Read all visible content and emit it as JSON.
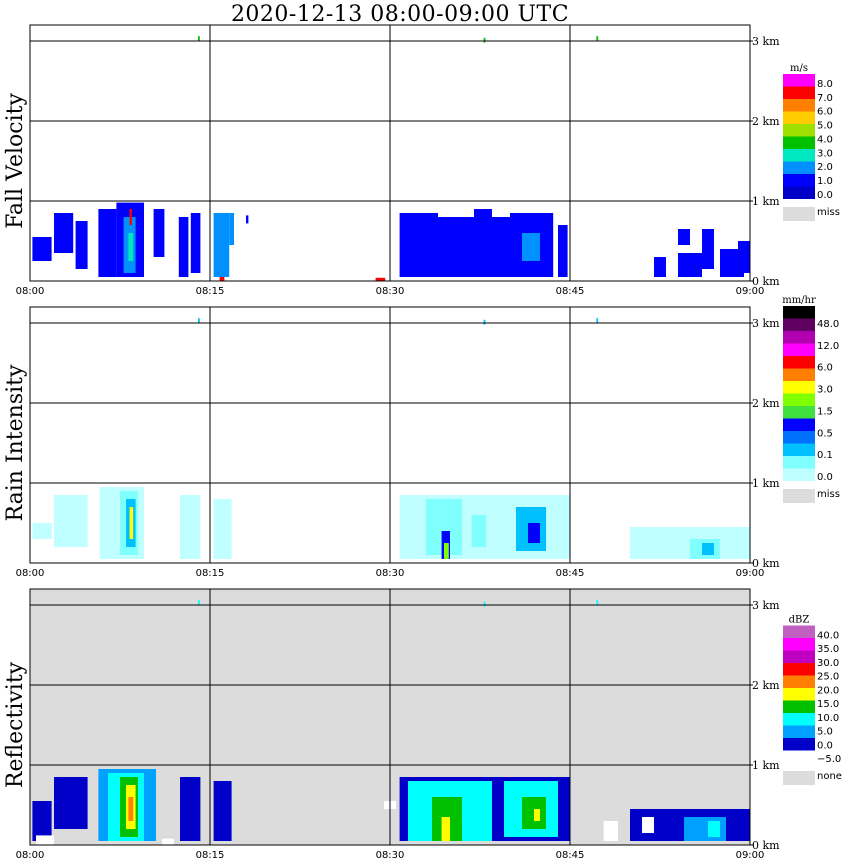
{
  "title": "2020-12-13   08:00-09:00 UTC",
  "chart_data": [
    {
      "type": "heatmap",
      "ylabel": "Fall Velocity",
      "units": "m/s",
      "background": "#ffffff",
      "x_ticks": [
        "08:00",
        "08:15",
        "08:30",
        "08:45",
        "09:00"
      ],
      "y_ticks": [
        "0 km",
        "1 km",
        "2 km",
        "3 km"
      ],
      "ylim_km": [
        0,
        3.2
      ],
      "legend": {
        "labels": [
          "8.0",
          "7.0",
          "6.0",
          "5.0",
          "4.0",
          "3.0",
          "2.0",
          "1.0",
          "0.0"
        ],
        "colors": [
          "#ff00ff",
          "#ff0000",
          "#ff8000",
          "#ffcc00",
          "#a0e000",
          "#00c000",
          "#00e8c0",
          "#0090ff",
          "#0000ff",
          "#0000c8"
        ],
        "missing_label": "miss",
        "missing_color": "#dcdcdc"
      },
      "echoes": [
        {
          "t0": 0.2,
          "t1": 1.8,
          "h0": 0.25,
          "h1": 0.55,
          "c": 8
        },
        {
          "t0": 2.0,
          "t1": 3.6,
          "h0": 0.35,
          "h1": 0.85,
          "c": 8
        },
        {
          "t0": 3.8,
          "t1": 4.8,
          "h0": 0.15,
          "h1": 0.75,
          "c": 8
        },
        {
          "t0": 5.7,
          "t1": 7.2,
          "h0": 0.05,
          "h1": 0.9,
          "c": 8
        },
        {
          "t0": 7.2,
          "t1": 9.5,
          "h0": 0.05,
          "h1": 0.98,
          "c": 8
        },
        {
          "t0": 7.8,
          "t1": 8.8,
          "h0": 0.1,
          "h1": 0.8,
          "c": 7
        },
        {
          "t0": 8.2,
          "t1": 8.6,
          "h0": 0.25,
          "h1": 0.6,
          "c": 6
        },
        {
          "t0": 8.3,
          "t1": 8.5,
          "h0": 0.7,
          "h1": 0.9,
          "c": 1
        },
        {
          "t0": 10.3,
          "t1": 11.2,
          "h0": 0.3,
          "h1": 0.9,
          "c": 8
        },
        {
          "t0": 12.4,
          "t1": 13.2,
          "h0": 0.05,
          "h1": 0.8,
          "c": 8
        },
        {
          "t0": 13.4,
          "t1": 14.2,
          "h0": 0.1,
          "h1": 0.85,
          "c": 8
        },
        {
          "t0": 15.3,
          "t1": 16.6,
          "h0": 0.05,
          "h1": 0.85,
          "c": 7
        },
        {
          "t0": 16.6,
          "t1": 17.0,
          "h0": 0.45,
          "h1": 0.85,
          "c": 7
        },
        {
          "t0": 18.0,
          "t1": 18.2,
          "h0": 0.72,
          "h1": 0.82,
          "c": 8
        },
        {
          "t0": 30.8,
          "t1": 34.0,
          "h0": 0.05,
          "h1": 0.85,
          "c": 8
        },
        {
          "t0": 34.0,
          "t1": 37.0,
          "h0": 0.05,
          "h1": 0.8,
          "c": 8
        },
        {
          "t0": 37.0,
          "t1": 38.5,
          "h0": 0.05,
          "h1": 0.9,
          "c": 8
        },
        {
          "t0": 38.5,
          "t1": 40.0,
          "h0": 0.05,
          "h1": 0.8,
          "c": 8
        },
        {
          "t0": 40.0,
          "t1": 43.6,
          "h0": 0.05,
          "h1": 0.85,
          "c": 8
        },
        {
          "t0": 41.0,
          "t1": 42.5,
          "h0": 0.25,
          "h1": 0.6,
          "c": 7
        },
        {
          "t0": 44.0,
          "t1": 44.8,
          "h0": 0.05,
          "h1": 0.7,
          "c": 8
        },
        {
          "t0": 52.0,
          "t1": 53.0,
          "h0": 0.05,
          "h1": 0.3,
          "c": 8
        },
        {
          "t0": 54.0,
          "t1": 56.0,
          "h0": 0.05,
          "h1": 0.35,
          "c": 8
        },
        {
          "t0": 54.0,
          "t1": 55.0,
          "h0": 0.45,
          "h1": 0.65,
          "c": 8
        },
        {
          "t0": 56.0,
          "t1": 57.0,
          "h0": 0.15,
          "h1": 0.65,
          "c": 8
        },
        {
          "t0": 57.5,
          "t1": 59.5,
          "h0": 0.05,
          "h1": 0.4,
          "c": 8
        },
        {
          "t0": 59.0,
          "t1": 60.0,
          "h0": 0.1,
          "h1": 0.5,
          "c": 8
        },
        {
          "t0": 15.8,
          "t1": 16.2,
          "h0": 0.0,
          "h1": 0.05,
          "c": 1
        },
        {
          "t0": 28.8,
          "t1": 29.6,
          "h0": 0.0,
          "h1": 0.04,
          "c": 1
        },
        {
          "t0": 14.0,
          "t1": 14.15,
          "h0": 3.0,
          "h1": 3.06,
          "c": 5
        },
        {
          "t0": 37.8,
          "t1": 37.95,
          "h0": 2.98,
          "h1": 3.04,
          "c": 5
        },
        {
          "t0": 47.2,
          "t1": 47.35,
          "h0": 3.0,
          "h1": 3.06,
          "c": 5
        }
      ]
    },
    {
      "type": "heatmap",
      "ylabel": "Rain Intensity",
      "units": "mm/hr",
      "background": "#ffffff",
      "x_ticks": [
        "08:00",
        "08:15",
        "08:30",
        "08:45",
        "09:00"
      ],
      "y_ticks": [
        "0 km",
        "1 km",
        "2 km",
        "3 km"
      ],
      "ylim_km": [
        0,
        3.2
      ],
      "legend": {
        "labels": [
          "48.0",
          "12.0",
          "6.0",
          "3.0",
          "1.5",
          "0.5",
          "0.1",
          "0.0"
        ],
        "colors": [
          "#000000",
          "#600060",
          "#b000b0",
          "#ff00ff",
          "#ff0000",
          "#ff8000",
          "#ffff00",
          "#80ff00",
          "#40e040",
          "#0000ff",
          "#0070ff",
          "#00c0ff",
          "#80ffff",
          "#c0ffff"
        ],
        "missing_label": "miss",
        "missing_color": "#dcdcdc"
      },
      "echoes": [
        {
          "t0": 0.2,
          "t1": 1.8,
          "h0": 0.3,
          "h1": 0.5,
          "c": 13
        },
        {
          "t0": 2.0,
          "t1": 4.8,
          "h0": 0.2,
          "h1": 0.85,
          "c": 13
        },
        {
          "t0": 5.8,
          "t1": 9.5,
          "h0": 0.05,
          "h1": 0.95,
          "c": 13
        },
        {
          "t0": 7.5,
          "t1": 9.0,
          "h0": 0.1,
          "h1": 0.9,
          "c": 12
        },
        {
          "t0": 8.0,
          "t1": 8.8,
          "h0": 0.2,
          "h1": 0.8,
          "c": 11
        },
        {
          "t0": 8.3,
          "t1": 8.6,
          "h0": 0.3,
          "h1": 0.7,
          "c": 6
        },
        {
          "t0": 12.5,
          "t1": 14.2,
          "h0": 0.05,
          "h1": 0.85,
          "c": 13
        },
        {
          "t0": 15.3,
          "t1": 16.8,
          "h0": 0.05,
          "h1": 0.8,
          "c": 13
        },
        {
          "t0": 30.8,
          "t1": 45.0,
          "h0": 0.05,
          "h1": 0.85,
          "c": 13
        },
        {
          "t0": 33.0,
          "t1": 36.0,
          "h0": 0.1,
          "h1": 0.8,
          "c": 12
        },
        {
          "t0": 34.3,
          "t1": 35.0,
          "h0": 0.05,
          "h1": 0.4,
          "c": 9
        },
        {
          "t0": 34.5,
          "t1": 34.9,
          "h0": 0.05,
          "h1": 0.25,
          "c": 7
        },
        {
          "t0": 40.5,
          "t1": 43.0,
          "h0": 0.15,
          "h1": 0.7,
          "c": 11
        },
        {
          "t0": 41.5,
          "t1": 42.5,
          "h0": 0.25,
          "h1": 0.5,
          "c": 9
        },
        {
          "t0": 36.8,
          "t1": 38.0,
          "h0": 0.2,
          "h1": 0.6,
          "c": 12
        },
        {
          "t0": 50.0,
          "t1": 60.0,
          "h0": 0.05,
          "h1": 0.45,
          "c": 13
        },
        {
          "t0": 55.0,
          "t1": 57.5,
          "h0": 0.05,
          "h1": 0.3,
          "c": 12
        },
        {
          "t0": 56.0,
          "t1": 57.0,
          "h0": 0.1,
          "h1": 0.25,
          "c": 11
        },
        {
          "t0": 14.0,
          "t1": 14.15,
          "h0": 3.0,
          "h1": 3.06,
          "c": 11
        },
        {
          "t0": 37.8,
          "t1": 37.95,
          "h0": 2.98,
          "h1": 3.04,
          "c": 11
        },
        {
          "t0": 47.2,
          "t1": 47.35,
          "h0": 3.0,
          "h1": 3.06,
          "c": 11
        }
      ]
    },
    {
      "type": "heatmap",
      "ylabel": "Reflectivity",
      "units": "dBZ",
      "background": "#dcdcdc",
      "x_ticks": [
        "08:00",
        "08:15",
        "08:30",
        "08:45",
        "09:00"
      ],
      "y_ticks": [
        "0 km",
        "1 km",
        "2 km",
        "3 km"
      ],
      "ylim_km": [
        0,
        3.2
      ],
      "legend": {
        "labels": [
          "40.0",
          "35.0",
          "30.0",
          "25.0",
          "20.0",
          "15.0",
          "10.0",
          "5.0",
          "0.0",
          "−5.0"
        ],
        "colors": [
          "#c060c0",
          "#ff00ff",
          "#c000c0",
          "#ff0000",
          "#ff8000",
          "#ffff00",
          "#00c000",
          "#00ffff",
          "#00a0ff",
          "#0000c8",
          "#ffffff"
        ],
        "missing_label": "none",
        "missing_color": "#dcdcdc"
      },
      "echoes": [
        {
          "t0": 0.2,
          "t1": 1.8,
          "h0": 0.05,
          "h1": 0.55,
          "c": 9
        },
        {
          "t0": 2.0,
          "t1": 4.8,
          "h0": 0.2,
          "h1": 0.85,
          "c": 9
        },
        {
          "t0": 5.7,
          "t1": 10.5,
          "h0": 0.05,
          "h1": 0.95,
          "c": 8
        },
        {
          "t0": 6.5,
          "t1": 9.5,
          "h0": 0.05,
          "h1": 0.9,
          "c": 7
        },
        {
          "t0": 7.5,
          "t1": 9.0,
          "h0": 0.1,
          "h1": 0.85,
          "c": 6
        },
        {
          "t0": 8.0,
          "t1": 8.8,
          "h0": 0.2,
          "h1": 0.75,
          "c": 5
        },
        {
          "t0": 8.2,
          "t1": 8.6,
          "h0": 0.3,
          "h1": 0.6,
          "c": 4
        },
        {
          "t0": 12.5,
          "t1": 14.2,
          "h0": 0.05,
          "h1": 0.85,
          "c": 9
        },
        {
          "t0": 15.3,
          "t1": 16.8,
          "h0": 0.05,
          "h1": 0.8,
          "c": 9
        },
        {
          "t0": 30.8,
          "t1": 45.0,
          "h0": 0.05,
          "h1": 0.85,
          "c": 9
        },
        {
          "t0": 31.5,
          "t1": 38.5,
          "h0": 0.05,
          "h1": 0.8,
          "c": 7
        },
        {
          "t0": 33.5,
          "t1": 36.0,
          "h0": 0.05,
          "h1": 0.6,
          "c": 6
        },
        {
          "t0": 34.3,
          "t1": 35.0,
          "h0": 0.05,
          "h1": 0.35,
          "c": 5
        },
        {
          "t0": 39.5,
          "t1": 44.0,
          "h0": 0.1,
          "h1": 0.8,
          "c": 7
        },
        {
          "t0": 41.0,
          "t1": 43.0,
          "h0": 0.2,
          "h1": 0.6,
          "c": 6
        },
        {
          "t0": 42.0,
          "t1": 42.5,
          "h0": 0.3,
          "h1": 0.45,
          "c": 5
        },
        {
          "t0": 50.0,
          "t1": 60.0,
          "h0": 0.05,
          "h1": 0.45,
          "c": 9
        },
        {
          "t0": 54.5,
          "t1": 58.0,
          "h0": 0.05,
          "h1": 0.35,
          "c": 8
        },
        {
          "t0": 56.5,
          "t1": 57.5,
          "h0": 0.1,
          "h1": 0.3,
          "c": 7
        },
        {
          "t0": 0.5,
          "t1": 2.0,
          "h0": 0.0,
          "h1": 0.12,
          "c": 10
        },
        {
          "t0": 11.0,
          "t1": 12.0,
          "h0": 0.0,
          "h1": 0.08,
          "c": 10
        },
        {
          "t0": 29.5,
          "t1": 30.5,
          "h0": 0.45,
          "h1": 0.55,
          "c": 10
        },
        {
          "t0": 47.8,
          "t1": 49.0,
          "h0": 0.05,
          "h1": 0.3,
          "c": 10
        },
        {
          "t0": 51.0,
          "t1": 52.0,
          "h0": 0.15,
          "h1": 0.35,
          "c": 10
        },
        {
          "t0": 14.0,
          "t1": 14.15,
          "h0": 3.0,
          "h1": 3.06,
          "c": 7
        },
        {
          "t0": 37.8,
          "t1": 37.95,
          "h0": 2.98,
          "h1": 3.04,
          "c": 7
        },
        {
          "t0": 47.2,
          "t1": 47.35,
          "h0": 3.0,
          "h1": 3.06,
          "c": 7
        }
      ]
    }
  ]
}
